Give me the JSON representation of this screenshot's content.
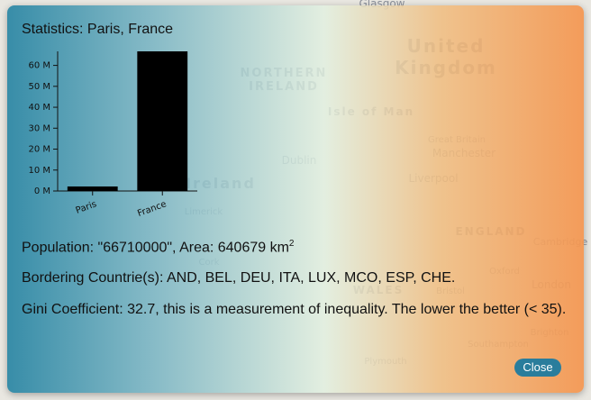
{
  "map": {
    "labels": [
      "Glasgow",
      "United",
      "Kingdom",
      "NORTHERN",
      "IRELAND",
      "Isle of Man",
      "Ireland",
      "Dublin",
      "Limerick",
      "Cork",
      "Great Britain",
      "Manchester",
      "Liverpool",
      "ENGLAND",
      "WALES",
      "Cambridge",
      "Oxford",
      "London",
      "Bristol",
      "Southampton",
      "Brighton",
      "Plymouth"
    ]
  },
  "modal": {
    "title": "Statistics: Paris, France",
    "population": "Population: \"66710000\", Area: 640679 km",
    "area_unit_power": "2",
    "borders": "Bordering Countrie(s): AND, BEL, DEU, ITA, LUX, MCO, ESP, CHE.",
    "gini": "Gini Coefficient: 32.7, this is a measurement of inequality. The lower the better (< 35).",
    "close": "Close"
  },
  "chart_data": {
    "type": "bar",
    "categories": [
      "Paris",
      "France"
    ],
    "values": [
      2160000,
      66710000
    ],
    "color": "#000000",
    "ylim": [
      0,
      66710000
    ],
    "yticks": [
      {
        "value": 0,
        "label": "0 M"
      },
      {
        "value": 10000000,
        "label": "10 M"
      },
      {
        "value": 20000000,
        "label": "20 M"
      },
      {
        "value": 30000000,
        "label": "30 M"
      },
      {
        "value": 40000000,
        "label": "40 M"
      },
      {
        "value": 50000000,
        "label": "50 M"
      },
      {
        "value": 60000000,
        "label": "60 M"
      }
    ]
  }
}
